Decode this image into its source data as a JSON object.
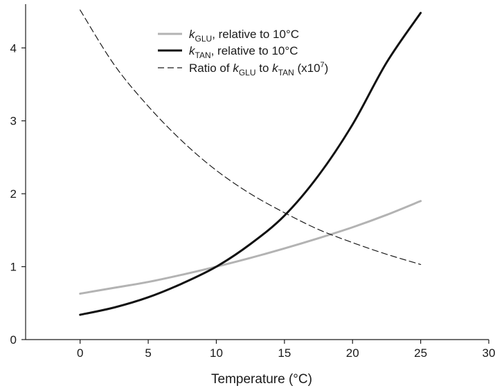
{
  "chart_data": {
    "type": "line",
    "title": "",
    "xlabel": "Temperature (°C)",
    "ylabel": "",
    "xlim": [
      -4,
      30
    ],
    "ylim": [
      0,
      4.6
    ],
    "xticks": [
      0,
      5,
      10,
      15,
      20,
      25,
      30
    ],
    "yticks": [
      0,
      1,
      2,
      3,
      4
    ],
    "grid": false,
    "legend_position": "top-center",
    "series": [
      {
        "key": "kglu",
        "legend": {
          "italic": "k",
          "sub": "GLU",
          "rest": ", relative to 10°C"
        },
        "color": "#b3b3b3",
        "style": "solid",
        "x": [
          0,
          2.5,
          5,
          7.5,
          10,
          12.5,
          15,
          17.5,
          20,
          22.5,
          25
        ],
        "values": [
          0.63,
          0.71,
          0.79,
          0.89,
          1.0,
          1.12,
          1.25,
          1.39,
          1.54,
          1.71,
          1.9
        ]
      },
      {
        "key": "ktan",
        "legend": {
          "italic": "k",
          "sub": "TAN",
          "rest": ", relative to 10°C"
        },
        "color": "#111111",
        "style": "solid",
        "x": [
          0,
          2.5,
          5,
          7.5,
          10,
          12.5,
          15,
          17.5,
          20,
          22.5,
          25
        ],
        "values": [
          0.34,
          0.44,
          0.58,
          0.77,
          1.0,
          1.31,
          1.7,
          2.25,
          2.95,
          3.8,
          4.48
        ]
      },
      {
        "key": "ratio",
        "legend": {
          "prefix": "Ratio of ",
          "italic1": "k",
          "sub1": "GLU",
          "mid": " to ",
          "italic2": "k",
          "sub2": "TAN",
          "suffix": " (x10",
          "sup": "7",
          "end": ")"
        },
        "color": "#1a1a1a",
        "style": "dashed",
        "x": [
          0,
          2.5,
          5,
          7.5,
          10,
          12.5,
          15,
          17.5,
          20,
          22.5,
          25
        ],
        "values": [
          4.52,
          3.77,
          3.2,
          2.72,
          2.32,
          2.0,
          1.74,
          1.51,
          1.33,
          1.17,
          1.03
        ]
      }
    ]
  }
}
